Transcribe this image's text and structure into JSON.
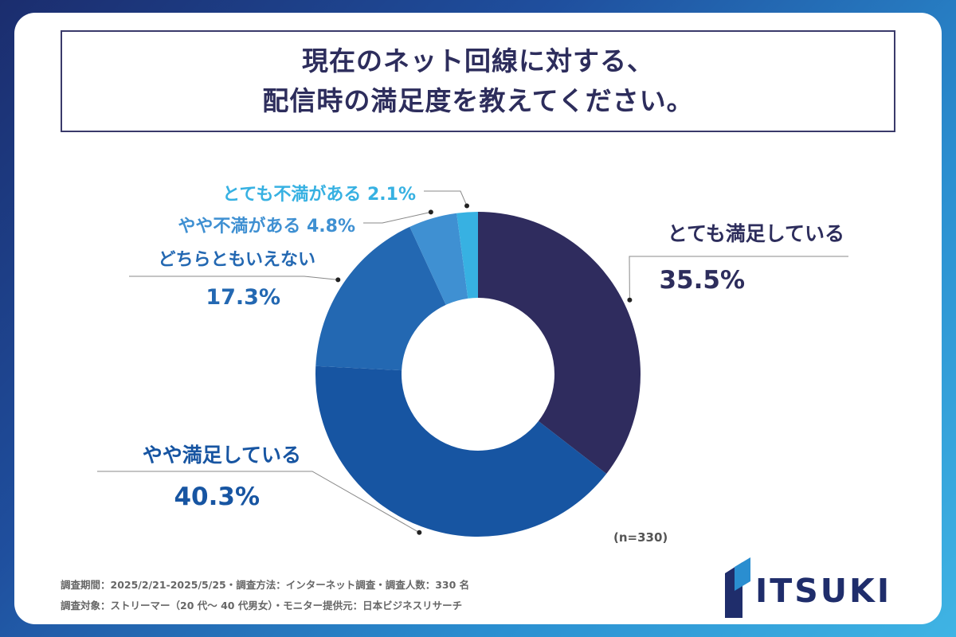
{
  "title": {
    "line1": "現在のネット回線に対する、",
    "line2": "配信時の満足度を教えてください。"
  },
  "sample_size": "(n=330)",
  "footnotes": {
    "line1": "調査期間：2025/2/21-2025/5/25・調査方法：インターネット調査・調査人数：330 名",
    "line2": "調査対象：ストリーマー（20 代～ 40 代男女）・モニター提供元：日本ビジネスリサーチ"
  },
  "logo": {
    "text": "ITSUKI"
  },
  "colors": {
    "background_gradient": [
      "#1b2d6e",
      "#3fb4e4"
    ],
    "title_text": "#2d2d5c"
  },
  "chart_data": {
    "type": "pie",
    "donut": true,
    "start": "top",
    "direction": "clockwise",
    "slices": [
      {
        "label": "とても満足している",
        "value": 35.5,
        "value_label": "35.5%",
        "color": "#2f2c5e"
      },
      {
        "label": "やや満足している",
        "value": 40.3,
        "value_label": "40.3%",
        "color": "#1755a2"
      },
      {
        "label": "どちらともいえない",
        "value": 17.3,
        "value_label": "17.3%",
        "color": "#2368b2"
      },
      {
        "label": "やや不満がある",
        "value": 4.8,
        "value_label": "4.8%",
        "color": "#3f90d2"
      },
      {
        "label": "とても不満がある",
        "value": 2.1,
        "value_label": "2.1%",
        "color": "#37b1e2"
      }
    ]
  }
}
